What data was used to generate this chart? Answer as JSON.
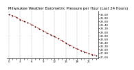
{
  "title": "Milwaukee Weather Barometric Pressure per Hour (Last 24 Hours)",
  "x_values": [
    0,
    1,
    2,
    3,
    4,
    5,
    6,
    7,
    8,
    9,
    10,
    11,
    12,
    13,
    14,
    15,
    16,
    17,
    18,
    19,
    20,
    21,
    22,
    23
  ],
  "y_values": [
    29.98,
    29.92,
    29.82,
    29.7,
    29.6,
    29.52,
    29.42,
    29.3,
    29.18,
    29.06,
    28.96,
    28.84,
    28.74,
    28.62,
    28.5,
    28.38,
    28.26,
    28.14,
    28.04,
    27.94,
    27.86,
    27.78,
    27.72,
    27.68
  ],
  "y_min": 27.5,
  "y_max": 30.2,
  "y_ticks": [
    27.6,
    27.8,
    28.0,
    28.2,
    28.4,
    28.6,
    28.8,
    29.0,
    29.2,
    29.4,
    29.6,
    29.8,
    30.0
  ],
  "line_color": "#cc0000",
  "marker_color": "#000000",
  "grid_color": "#999999",
  "bg_color": "#ffffff",
  "title_fontsize": 3.8,
  "tick_fontsize": 2.8,
  "vgrid_positions": [
    0,
    3,
    6,
    9,
    12,
    15,
    18,
    21
  ],
  "x_major_ticks": [
    0,
    3,
    6,
    9,
    12,
    15,
    18,
    21
  ]
}
